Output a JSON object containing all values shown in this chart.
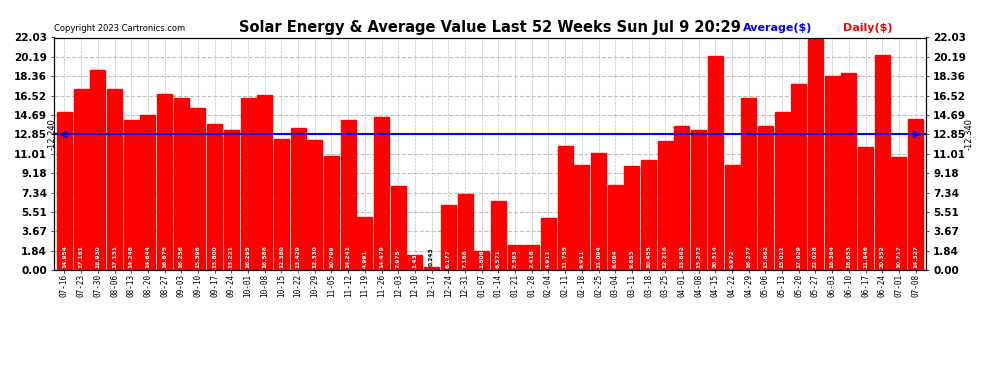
{
  "title": "Solar Energy & Average Value Last 52 Weeks Sun Jul 9 20:29",
  "copyright": "Copyright 2023 Cartronics.com",
  "legend_average": "Average($)",
  "legend_daily": "Daily($)",
  "average_line": 12.85,
  "bar_color": "#ff0000",
  "average_line_color": "#0000ff",
  "background_color": "#ffffff",
  "grid_color": "#c0c0c0",
  "yticks": [
    0.0,
    1.84,
    3.67,
    5.51,
    7.34,
    9.18,
    11.01,
    12.85,
    14.69,
    16.52,
    18.36,
    20.19,
    22.03
  ],
  "xlabels": [
    "07-16",
    "07-23",
    "07-30",
    "08-06",
    "08-13",
    "08-20",
    "08-27",
    "09-03",
    "09-10",
    "09-17",
    "09-24",
    "10-01",
    "10-08",
    "10-15",
    "10-22",
    "10-29",
    "11-05",
    "11-12",
    "11-19",
    "11-26",
    "12-03",
    "12-10",
    "12-17",
    "12-24",
    "12-31",
    "01-07",
    "01-14",
    "01-21",
    "01-28",
    "02-04",
    "02-11",
    "02-18",
    "02-25",
    "03-04",
    "03-11",
    "03-18",
    "03-25",
    "04-01",
    "04-08",
    "04-15",
    "04-22",
    "04-29",
    "05-06",
    "05-13",
    "05-20",
    "05-27",
    "06-03",
    "06-10",
    "06-17",
    "06-24",
    "07-01",
    "07-08"
  ],
  "values": [
    14.954,
    17.161,
    18.93,
    17.131,
    14.248,
    14.644,
    16.675,
    16.256,
    15.396,
    13.8,
    13.221,
    16.295,
    16.588,
    12.38,
    13.429,
    12.33,
    10.799,
    14.241,
    4.991,
    14.479,
    7.975,
    1.431,
    0.243,
    6.177,
    7.168,
    1.806,
    6.571,
    2.393,
    2.416,
    4.911,
    11.755,
    9.911,
    11.094,
    8.064,
    9.853,
    10.455,
    12.216,
    13.662,
    13.272,
    20.314,
    9.972,
    16.277,
    13.662,
    15.011,
    17.629,
    22.028,
    18.384,
    18.653,
    11.646,
    20.352,
    10.717,
    14.327
  ],
  "left_arrow_label": "-12.240",
  "right_arrow_label": "-12.340",
  "ylim_max": 22.03,
  "ylim_min": 0.0,
  "figsize": [
    9.9,
    3.75
  ],
  "dpi": 100
}
